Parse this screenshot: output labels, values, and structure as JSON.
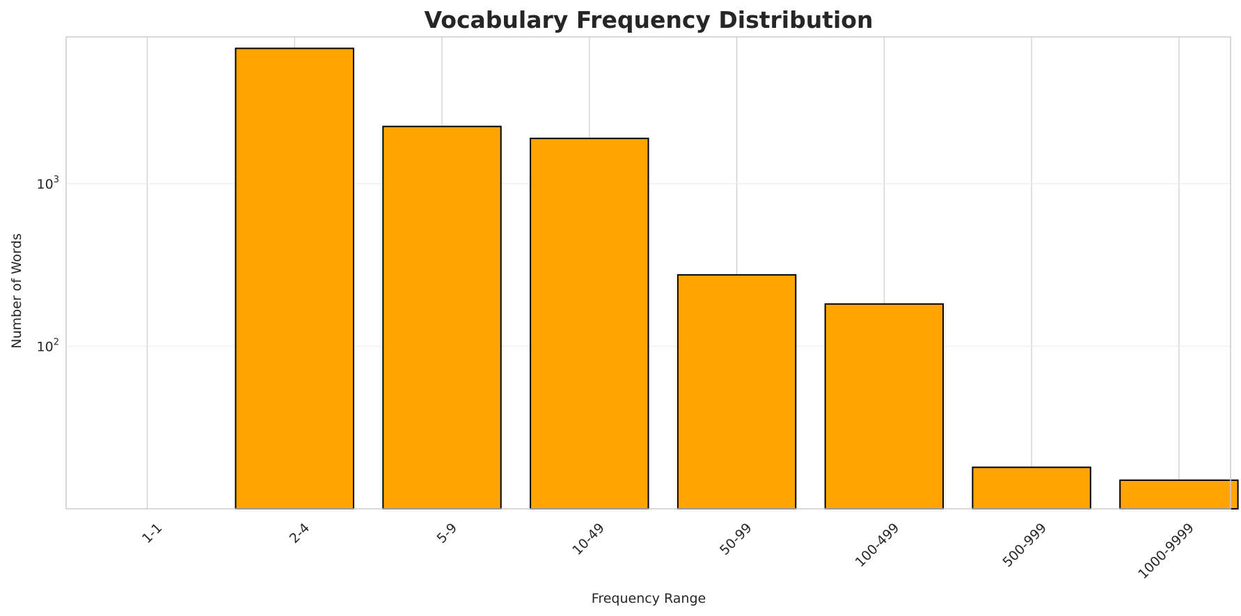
{
  "chart_data": {
    "type": "bar",
    "title": "Vocabulary Frequency Distribution",
    "xlabel": "Frequency Range",
    "ylabel": "Number of Words",
    "yscale": "log",
    "ylim": [
      10,
      8000
    ],
    "yticks": [
      {
        "value": 100,
        "base": "10",
        "exp": "2"
      },
      {
        "value": 1000,
        "base": "10",
        "exp": "3"
      }
    ],
    "categories": [
      "1-1",
      "2-4",
      "5-9",
      "10-49",
      "50-99",
      "100-499",
      "500-999",
      "1000-9999"
    ],
    "values": [
      null,
      6800,
      2250,
      1900,
      275,
      182,
      18,
      15
    ],
    "bar_color": "#FFA500",
    "edge_color": "#000000",
    "grid": true
  }
}
